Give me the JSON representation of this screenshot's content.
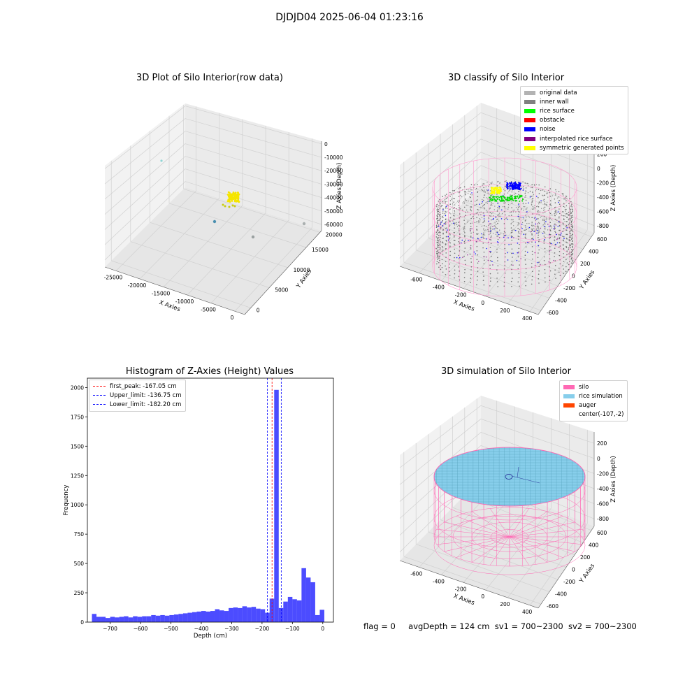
{
  "suptitle": "DJDJD04 2025-06-04 01:23:16",
  "panels": {
    "raw": {
      "title": "3D Plot of Silo Interior(row data)",
      "xlabel": "X Axies",
      "ylabel": "Y Axies",
      "zlabel": "Z Axies (Depth)",
      "xticks": [
        "-25000",
        "-20000",
        "-15000",
        "-10000",
        "-5000",
        "0"
      ],
      "yticks": [
        "0",
        "5000",
        "10000",
        "15000",
        "20000"
      ],
      "zticks": [
        "0",
        "-10000",
        "-20000",
        "-30000",
        "-40000",
        "-50000",
        "-60000"
      ]
    },
    "classify": {
      "title": "3D classify of Silo Interior",
      "xlabel": "X Axies",
      "ylabel": "Y Axies",
      "zlabel": "Z Axies (Depth)",
      "xticks": [
        "-600",
        "-400",
        "-200",
        "0",
        "200",
        "400"
      ],
      "yticks": [
        "-600",
        "-400",
        "-200",
        "0",
        "200",
        "400",
        "600"
      ],
      "zticks": [
        "200",
        "0",
        "-200",
        "-400",
        "-600",
        "-800"
      ],
      "legend": [
        {
          "label": "original data",
          "color": "#b3b3b3"
        },
        {
          "label": "inner wall",
          "color": "#808080"
        },
        {
          "label": "rice surface",
          "color": "#00ff00"
        },
        {
          "label": "obstacle",
          "color": "#ff0000"
        },
        {
          "label": "noise",
          "color": "#0000ff"
        },
        {
          "label": "interpolated rice surface",
          "color": "#800080"
        },
        {
          "label": "symmetric generated points",
          "color": "#ffff00"
        }
      ]
    },
    "simulation": {
      "title": "3D simulation of Silo Interior",
      "xlabel": "X Axies",
      "ylabel": "Y Axies",
      "zlabel": "Z Axies (Depth)",
      "xticks": [
        "-600",
        "-400",
        "-200",
        "0",
        "200",
        "400"
      ],
      "yticks": [
        "-600",
        "-400",
        "-200",
        "0",
        "200",
        "400",
        "600"
      ],
      "zticks": [
        "200",
        "0",
        "-200",
        "-400",
        "-600",
        "-800"
      ],
      "legend": [
        {
          "label": "silo",
          "color": "#ff69b4"
        },
        {
          "label": "rice simulation",
          "color": "#87ceeb"
        },
        {
          "label": "auger",
          "color": "#ff4500"
        },
        {
          "label": "center(-107,-2)",
          "color": ""
        }
      ]
    }
  },
  "footer": {
    "flag": "flag = 0",
    "avg": "avgDepth = 124 cm",
    "sv1": "sv1 = 700~2300",
    "sv2": "sv2 = 700~2300"
  },
  "chart_data": {
    "type": "bar",
    "title": "Histogram of Z-Axies (Height) Values",
    "xlabel": "Depth (cm)",
    "ylabel": "Frequency",
    "xlim": [
      -775,
      35
    ],
    "ylim": [
      0,
      2080
    ],
    "xticks": [
      -700,
      -600,
      -500,
      -400,
      -300,
      -200,
      -100,
      0
    ],
    "yticks": [
      0,
      250,
      500,
      750,
      1000,
      1250,
      1500,
      1750,
      2000
    ],
    "bar_color": "#0000ff",
    "bin_edges": [
      -760,
      -745,
      -730,
      -715,
      -700,
      -685,
      -670,
      -655,
      -640,
      -625,
      -610,
      -595,
      -580,
      -565,
      -550,
      -535,
      -520,
      -505,
      -490,
      -475,
      -460,
      -445,
      -430,
      -415,
      -400,
      -385,
      -370,
      -355,
      -340,
      -325,
      -310,
      -295,
      -280,
      -265,
      -250,
      -235,
      -220,
      -205,
      -190,
      -175,
      -160,
      -145,
      -130,
      -115,
      -100,
      -85,
      -70,
      -55,
      -40,
      -25,
      -10,
      5
    ],
    "values": [
      70,
      45,
      45,
      35,
      45,
      40,
      45,
      50,
      40,
      50,
      45,
      50,
      50,
      60,
      55,
      60,
      55,
      60,
      65,
      70,
      75,
      80,
      85,
      90,
      95,
      90,
      95,
      110,
      100,
      95,
      120,
      125,
      120,
      135,
      125,
      130,
      115,
      110,
      80,
      200,
      1980,
      120,
      175,
      215,
      195,
      185,
      460,
      380,
      340,
      60,
      105
    ],
    "vlines": [
      {
        "label": "first_peak: -167.05 cm",
        "x": -167.05,
        "color": "#ff0000"
      },
      {
        "label": "Upper_limit: -136.75 cm",
        "x": -136.75,
        "color": "#0000ff"
      },
      {
        "label": "Lower_limit: -182.20 cm",
        "x": -182.2,
        "color": "#0000ff"
      }
    ]
  }
}
